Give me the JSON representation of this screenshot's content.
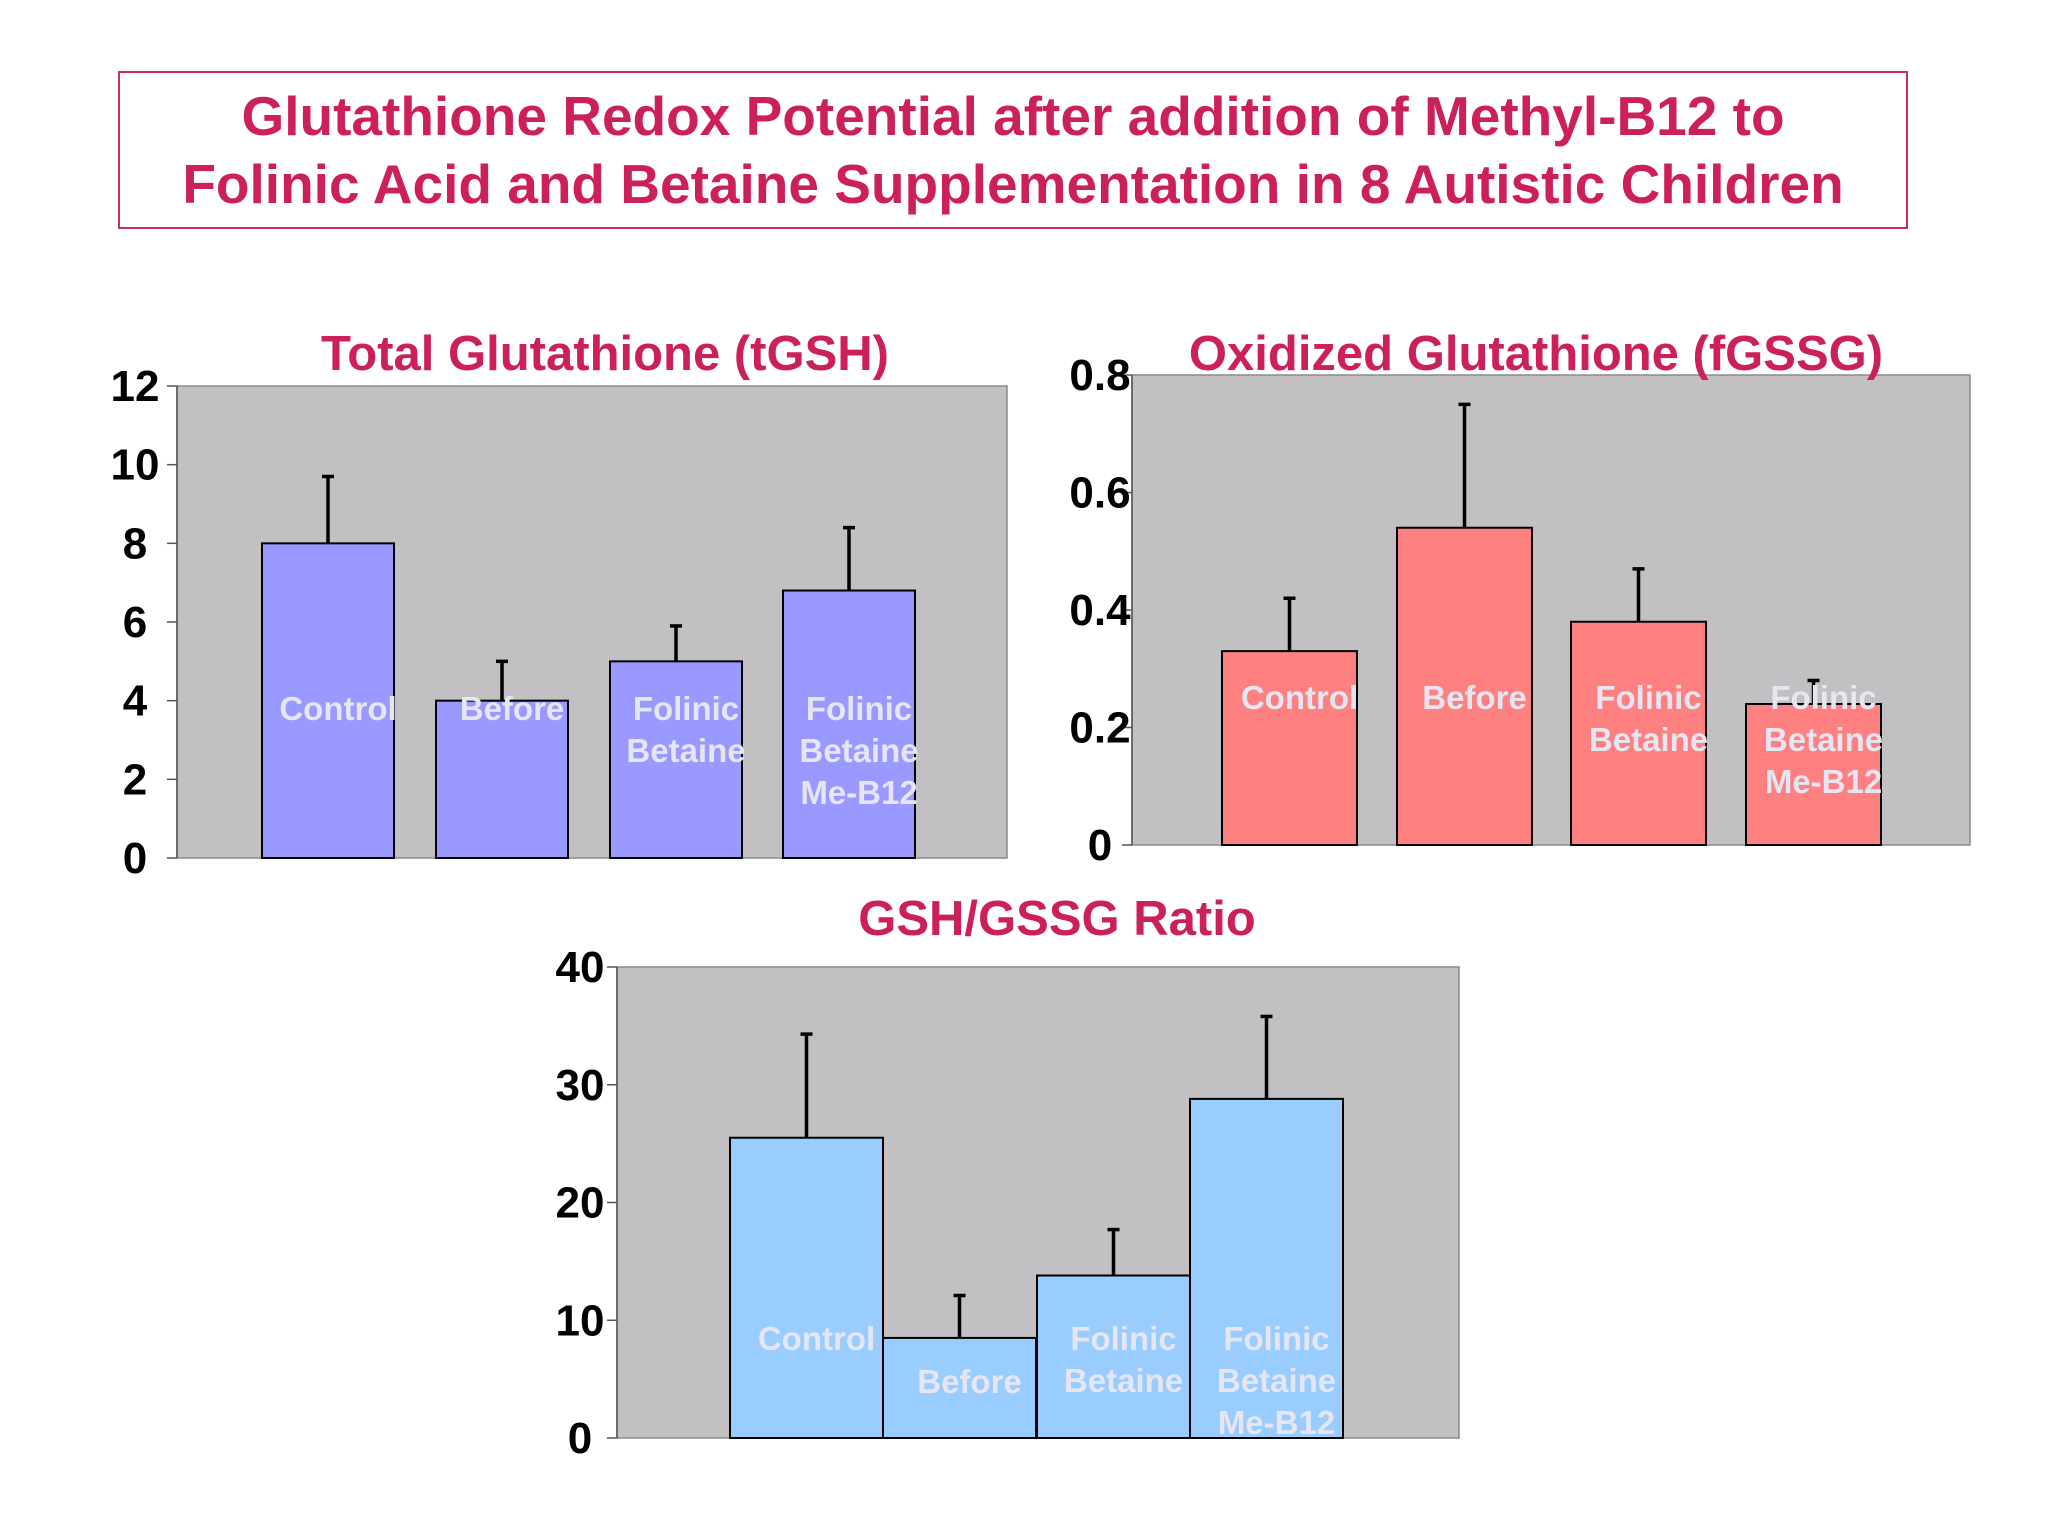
{
  "page": {
    "title_line1": "Glutathione Redox Potential after addition of Methyl-B12 to",
    "title_line2": "Folinic Acid and Betaine Supplementation in 8 Autistic Children"
  },
  "colors": {
    "title": "#cc2058",
    "plot_background": "#c2c0c3",
    "tgsh_bar": "#9999ff",
    "fgssg_bar": "#ff8080",
    "ratio_bar": "#99ccff",
    "error_bar": "#000000",
    "bar_label": "#e6e6f2"
  },
  "chart_data": [
    {
      "id": "tgsh",
      "type": "bar",
      "title": "Total Glutathione (tGSH)",
      "categories": [
        [
          "Control"
        ],
        [
          "Before"
        ],
        [
          "Folinic",
          "Betaine"
        ],
        [
          "Folinic",
          "Betaine",
          "Me-B12"
        ]
      ],
      "values": [
        8.0,
        4.0,
        5.0,
        6.8
      ],
      "errors": [
        1.7,
        1.0,
        0.9,
        1.6
      ],
      "ylim": [
        0,
        12
      ],
      "yticks": [
        "0",
        "2",
        "4",
        "6",
        "8",
        "10",
        "12"
      ],
      "xlabel": "",
      "ylabel": "",
      "bar_color": "#9999ff",
      "grid": false
    },
    {
      "id": "fgssg",
      "type": "bar",
      "title": "Oxidized Glutathione (fGSSG)",
      "categories": [
        [
          "Control"
        ],
        [
          "Before"
        ],
        [
          "Folinic",
          "Betaine"
        ],
        [
          "Folinic",
          "Betaine",
          "Me-B12"
        ]
      ],
      "values": [
        0.33,
        0.54,
        0.38,
        0.24
      ],
      "errors": [
        0.09,
        0.21,
        0.09,
        0.04
      ],
      "ylim": [
        0,
        0.8
      ],
      "yticks": [
        "0",
        "0.2",
        "0.4",
        "0.6",
        "0.8"
      ],
      "xlabel": "",
      "ylabel": "",
      "bar_color": "#ff8080",
      "grid": false
    },
    {
      "id": "ratio",
      "type": "bar",
      "title": "GSH/GSSG Ratio",
      "categories": [
        [
          "Control"
        ],
        [
          "Before"
        ],
        [
          "Folinic",
          "Betaine"
        ],
        [
          "Folinic",
          "Betaine",
          "Me-B12"
        ]
      ],
      "values": [
        25.5,
        8.5,
        13.8,
        28.8
      ],
      "errors": [
        8.8,
        3.6,
        3.9,
        7.0
      ],
      "ylim": [
        0,
        40
      ],
      "yticks": [
        "0",
        "10",
        "20",
        "30",
        "40"
      ],
      "xlabel": "",
      "ylabel": "",
      "bar_color": "#99ccff",
      "grid": false
    }
  ]
}
